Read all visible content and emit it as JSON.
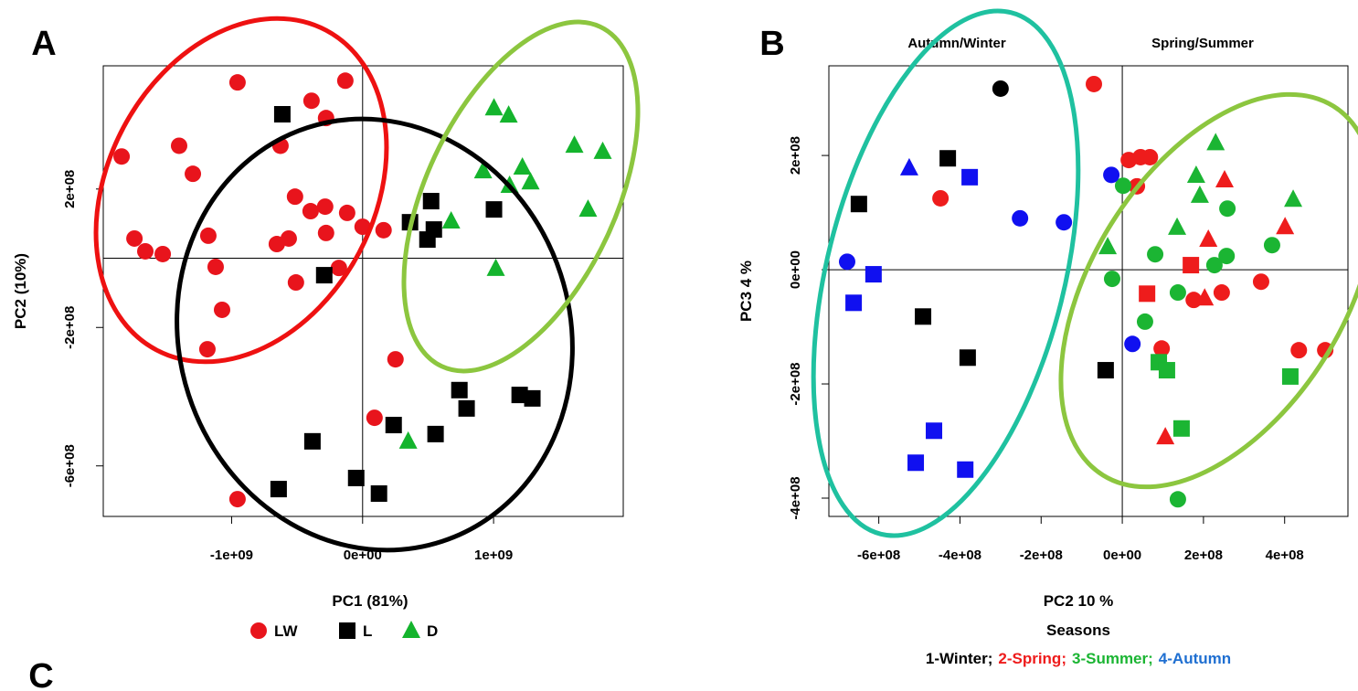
{
  "chart_data": [
    {
      "type": "scatter",
      "panel": "A",
      "xlabel": "PC1 (81%)",
      "ylabel": "PC2 (10%)",
      "xlim": [
        -1980000000.0,
        1990000000.0
      ],
      "ylim": [
        -746000000.0,
        556000000.0
      ],
      "xticks": [
        {
          "value": -1000000000.0,
          "label": "-1e+09"
        },
        {
          "value": 0,
          "label": "0e+00"
        },
        {
          "value": 1000000000.0,
          "label": "1e+09"
        }
      ],
      "yticks": [
        {
          "value": 200000000.0,
          "label": "2e+08"
        },
        {
          "value": -200000000.0,
          "label": "-2e+08"
        },
        {
          "value": -600000000.0,
          "label": "-6e+08"
        }
      ],
      "zero_lines": true,
      "series": [
        {
          "name": "LW",
          "color": "#e8141c",
          "marker": "circle",
          "x": [
            -955000000.0,
            -132000000.0,
            -390000000.0,
            -279000000.0,
            -1401000000.0,
            -627000000.0,
            -1840000000.0,
            -1296000000.0,
            -516000000.0,
            -397000000.0,
            -286000000.0,
            -118000000.0,
            0.0,
            160000000.0,
            -1742000000.0,
            -1178000000.0,
            -1659000000.0,
            -1526000000.0,
            -655000000.0,
            -564000000.0,
            -279000000.0,
            -1122000000.0,
            -181000000.0,
            -509000000.0,
            -1073000000.0,
            -1185000000.0,
            251000000.0,
            91000000.0,
            -955000000.0
          ],
          "values": [
            508000000.0,
            513000000.0,
            455000000.0,
            405000000.0,
            325000000.0,
            325000000.0,
            294000000.0,
            244000000.0,
            178000000.0,
            136000000.0,
            149000000.0,
            131000000.0,
            91000000.0,
            81000000.0,
            57000000.0,
            65000000.0,
            20000000.0,
            12000000.0,
            41000000.0,
            57000000.0,
            73000000.0,
            -25000000.0,
            -28000000.0,
            -70000000.0,
            -149000000.0,
            -263000000.0,
            -292000000.0,
            -461000000.0,
            -696000000.0
          ]
        },
        {
          "name": "L",
          "color": "#000000",
          "marker": "square",
          "x": [
            -613000000.0,
            523000000.0,
            362000000.0,
            544000000.0,
            495000000.0,
            1003000000.0,
            -293000000.0,
            739000000.0,
            794000000.0,
            1199000000.0,
            1296000000.0,
            237000000.0,
            557000000.0,
            -383000000.0,
            -49000000.0,
            -641000000.0,
            125000000.0
          ],
          "values": [
            416000000.0,
            165000000.0,
            104000000.0,
            83000000.0,
            54000000.0,
            141000000.0,
            -49000000.0,
            -381000000.0,
            -434000000.0,
            -395000000.0,
            -405000000.0,
            -482000000.0,
            -508000000.0,
            -529000000.0,
            -635000000.0,
            -667000000.0,
            -680000000.0
          ]
        },
        {
          "name": "D",
          "color": "#14b42d",
          "marker": "triangle",
          "x": [
            1003000000.0,
            1115000000.0,
            1617000000.0,
            1833000000.0,
            1220000000.0,
            920000000.0,
            1122000000.0,
            1282000000.0,
            1721000000.0,
            676000000.0,
            1017000000.0,
            348000000.0
          ],
          "values": [
            434000000.0,
            413000000.0,
            326000000.0,
            308000000.0,
            263000000.0,
            252000000.0,
            210000000.0,
            220000000.0,
            141000000.0,
            107000000.0,
            -30000000.0,
            -529000000.0
          ]
        }
      ]
    },
    {
      "type": "scatter",
      "panel": "B",
      "xlabel": "PC2 10 %",
      "ylabel": "PC3 4 %",
      "annotations": [
        "Autumn/Winter",
        "Spring/Summer"
      ],
      "legend_title": "Seasons",
      "xlim": [
        -723000000.0,
        556000000.0
      ],
      "ylim": [
        -432000000.0,
        357000000.0
      ],
      "xticks": [
        {
          "value": -600000000.0,
          "label": "-6e+08"
        },
        {
          "value": -400000000.0,
          "label": "-4e+08"
        },
        {
          "value": -200000000.0,
          "label": "-2e+08"
        },
        {
          "value": 0,
          "label": "0e+00"
        },
        {
          "value": 200000000.0,
          "label": "2e+08"
        },
        {
          "value": 400000000.0,
          "label": "4e+08"
        }
      ],
      "yticks": [
        {
          "value": 200000000.0,
          "label": "2e+08"
        },
        {
          "value": 0,
          "label": "0e+00"
        },
        {
          "value": -200000000.0,
          "label": "-2e+08"
        },
        {
          "value": -400000000.0,
          "label": "-4e+08"
        }
      ],
      "zero_lines": true,
      "series": [
        {
          "name": "1-Winter;",
          "color": "#000000",
          "x": [
            -300000000.0,
            -430000000.0,
            -649000000.0,
            -491000000.0,
            -381000000.0,
            -41000000.0
          ],
          "values": [
            317000000.0,
            195000000.0,
            115000000.0,
            -82000000.0,
            -154000000.0,
            -176000000.0
          ],
          "markers": [
            "circle",
            "square",
            "square",
            "square",
            "square",
            "square"
          ]
        },
        {
          "name": "2-Spring;",
          "color": "#ee1c1c",
          "x": [
            -70000000.0,
            -448000000.0,
            16000000.0,
            45000000.0,
            68000000.0,
            36000000.0,
            252000000.0,
            401000000.0,
            212000000.0,
            169000000.0,
            61000000.0,
            342000000.0,
            245000000.0,
            176000000.0,
            203000000.0,
            97000000.0,
            435000000.0,
            500000000.0,
            106000000.0
          ],
          "values": [
            325000000.0,
            125000000.0,
            192000000.0,
            197000000.0,
            197000000.0,
            146000000.0,
            157000000.0,
            75000000.0,
            53000000.0,
            8000000.0,
            -42000000.0,
            -21000000.0,
            -40000000.0,
            -53000000.0,
            -50000000.0,
            -138000000.0,
            -141000000.0,
            -141000000.0,
            -293000000.0
          ],
          "markers": [
            "circle",
            "circle",
            "circle",
            "circle",
            "circle",
            "circle",
            "triangle",
            "triangle",
            "triangle",
            "square",
            "square",
            "circle",
            "circle",
            "circle",
            "triangle",
            "circle",
            "circle",
            "circle",
            "triangle"
          ]
        },
        {
          "name": "3-Summer;",
          "color": "#1bb533",
          "x": [
            230000000.0,
            182000000.0,
            191000000.0,
            421000000.0,
            2000000.0,
            259000000.0,
            135000000.0,
            -36000000.0,
            81000000.0,
            257000000.0,
            369000000.0,
            227000000.0,
            -25000000.0,
            137000000.0,
            56000000.0,
            90000000.0,
            110000000.0,
            414000000.0,
            146000000.0,
            137000000.0
          ],
          "values": [
            222000000.0,
            165000000.0,
            130000000.0,
            123000000.0,
            147000000.0,
            107000000.0,
            74000000.0,
            40000000.0,
            27000000.0,
            24000000.0,
            43000000.0,
            8000000.0,
            -16000000.0,
            -40000000.0,
            -91000000.0,
            -162000000.0,
            -176000000.0,
            -187000000.0,
            -278000000.0,
            -402000000.0
          ],
          "markers": [
            "triangle",
            "triangle",
            "triangle",
            "triangle",
            "circle",
            "circle",
            "triangle",
            "triangle",
            "circle",
            "circle",
            "circle",
            "circle",
            "circle",
            "circle",
            "circle",
            "square",
            "square",
            "square",
            "square",
            "circle"
          ]
        },
        {
          "name": "4-Autumn",
          "color": "#1010f0",
          "legend_color": "#1f6fd1",
          "x": [
            -27000000.0,
            -525000000.0,
            -376000000.0,
            -252000000.0,
            -144000000.0,
            -678000000.0,
            -613000000.0,
            -662000000.0,
            25000000.0,
            -464000000.0,
            -509000000.0,
            -387000000.0
          ],
          "values": [
            166000000.0,
            178000000.0,
            162000000.0,
            90000000.0,
            83000000.0,
            14000000.0,
            -8000000.0,
            -58000000.0,
            -130000000.0,
            -282000000.0,
            -338000000.0,
            -350000000.0
          ],
          "markers": [
            "circle",
            "triangle",
            "square",
            "circle",
            "circle",
            "circle",
            "square",
            "square",
            "circle",
            "square",
            "square",
            "square"
          ]
        }
      ]
    }
  ],
  "next_panel": "C"
}
